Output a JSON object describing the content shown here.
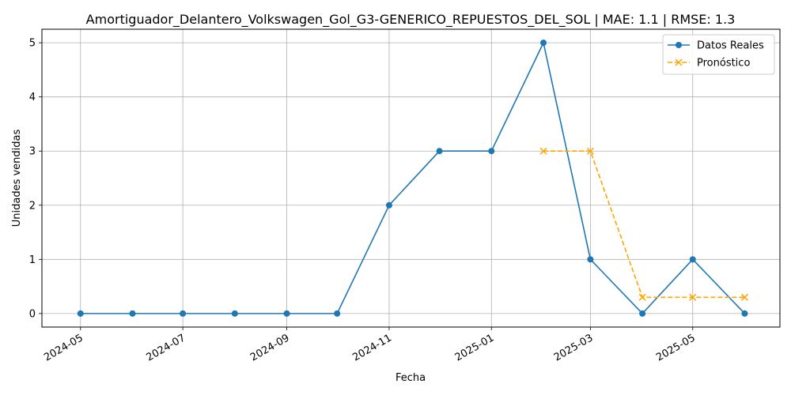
{
  "chart_data": {
    "type": "line",
    "title": "Amortiguador_Delantero_Volkswagen_Gol_G3-GENERICO_REPUESTOS_DEL_SOL | MAE: 1.1 | RMSE: 1.3",
    "xlabel": "Fecha",
    "ylabel": "Unidades vendidas",
    "ylim": [
      -0.25,
      5.25
    ],
    "yticks": [
      0,
      1,
      2,
      3,
      4,
      5
    ],
    "xlim": [
      "2024-04-08",
      "2025-06-22"
    ],
    "xticks": [
      "2024-05",
      "2024-07",
      "2024-09",
      "2024-11",
      "2025-01",
      "2025-03",
      "2025-05"
    ],
    "grid": true,
    "legend_position": "top-right",
    "series": [
      {
        "name": "Datos Reales",
        "color": "#1f77b4",
        "line_style": "solid",
        "marker": "circle",
        "x": [
          "2024-05-01",
          "2024-06-01",
          "2024-07-01",
          "2024-08-01",
          "2024-09-01",
          "2024-10-01",
          "2024-11-01",
          "2024-12-01",
          "2025-01-01",
          "2025-02-01",
          "2025-03-01",
          "2025-04-01",
          "2025-05-01",
          "2025-06-01"
        ],
        "values": [
          0,
          0,
          0,
          0,
          0,
          0,
          2,
          3,
          3,
          5,
          1,
          0,
          1,
          0
        ]
      },
      {
        "name": "Pronóstico",
        "color": "#ffa500",
        "line_style": "dashed",
        "marker": "x",
        "x": [
          "2025-02-01",
          "2025-03-01",
          "2025-04-01",
          "2025-05-01",
          "2025-06-01"
        ],
        "values": [
          3,
          3,
          0.3,
          0.3,
          0.3
        ]
      }
    ]
  }
}
